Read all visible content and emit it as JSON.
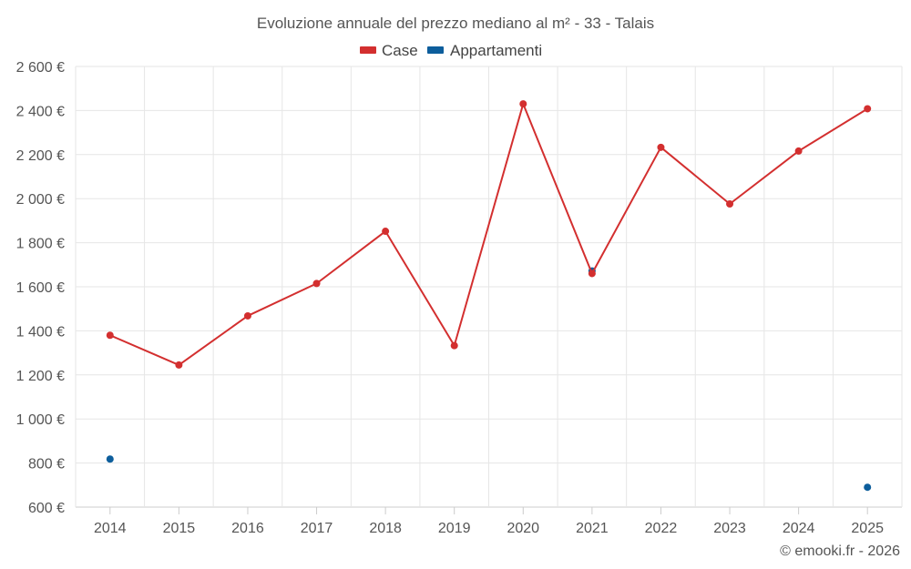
{
  "chart_data": {
    "type": "line",
    "title": "Evoluzione annuale del prezzo mediano al m² - 33 - Talais",
    "categories": [
      "2014",
      "2015",
      "2016",
      "2017",
      "2018",
      "2019",
      "2020",
      "2021",
      "2022",
      "2023",
      "2024",
      "2025"
    ],
    "y_ticks": [
      "600 €",
      "800 €",
      "1 000 €",
      "1 200 €",
      "1 400 €",
      "1 600 €",
      "1 800 €",
      "2 000 €",
      "2 200 €",
      "2 400 €",
      "2 600 €"
    ],
    "ylim": [
      600,
      2600
    ],
    "grid": true,
    "legend_position": "top-center",
    "series": [
      {
        "name": "Case",
        "color": "#d32f2f",
        "values": [
          1380,
          1245,
          1468,
          1615,
          1852,
          1333,
          2430,
          1660,
          2233,
          1976,
          2216,
          2408
        ]
      },
      {
        "name": "Appartamenti",
        "color": "#0d5e9c",
        "values": [
          818,
          null,
          null,
          null,
          null,
          null,
          null,
          1672,
          null,
          null,
          null,
          690
        ]
      }
    ],
    "credit": "© emooki.fr - 2026"
  }
}
